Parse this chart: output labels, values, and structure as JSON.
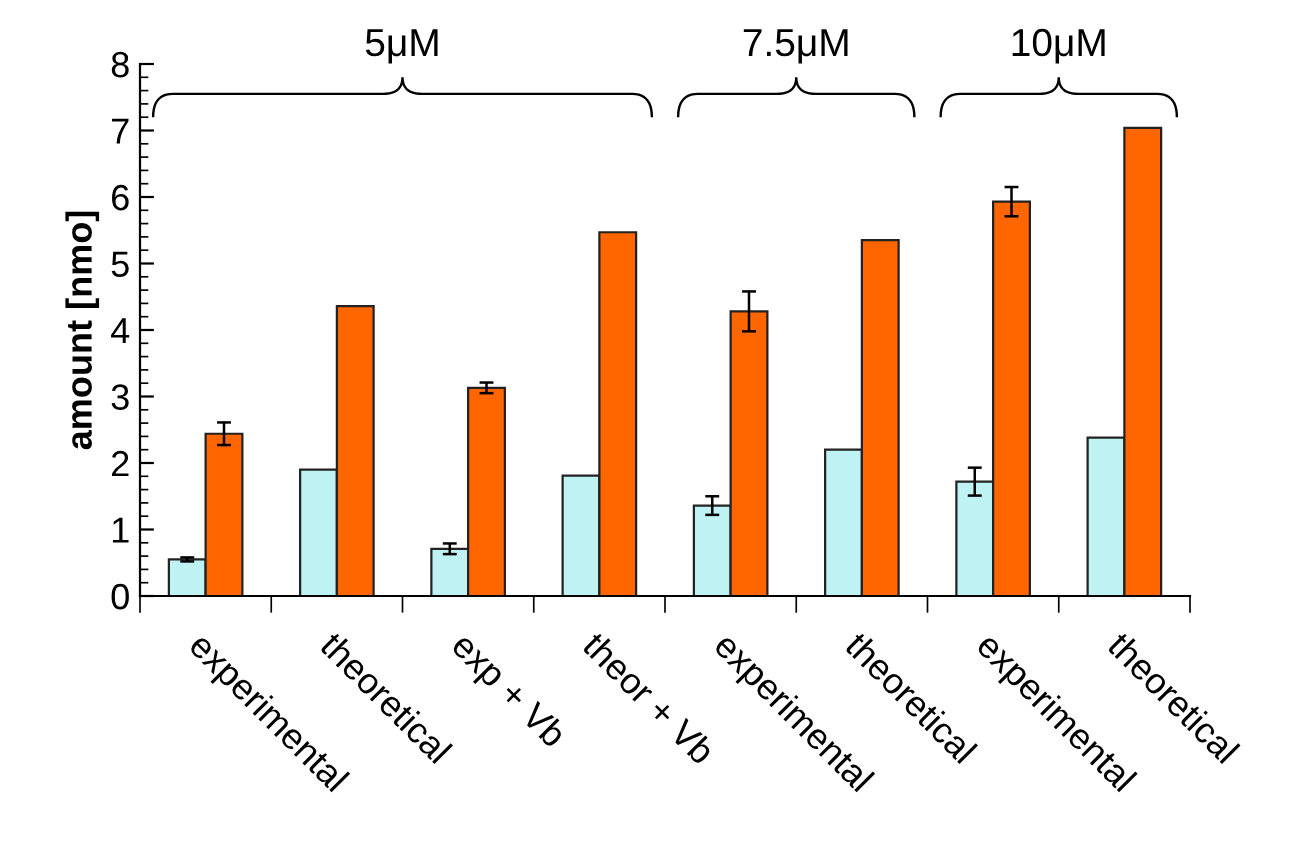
{
  "chart_data": {
    "type": "bar",
    "ylabel": "amount [nmo]",
    "categories": [
      "experimental",
      "theoretical",
      "exp + Vb",
      "theor + Vb",
      "experimental",
      "theoretical",
      "experimental",
      "theoretical"
    ],
    "series": [
      {
        "color": "#bff3f3",
        "values": [
          0.55,
          1.9,
          0.71,
          1.81,
          1.36,
          2.2,
          1.72,
          2.38
        ],
        "errors": [
          0.03,
          null,
          0.08,
          null,
          0.14,
          null,
          0.21,
          null
        ]
      },
      {
        "color": "#ff6600",
        "values": [
          2.44,
          4.36,
          3.13,
          5.47,
          4.28,
          5.35,
          5.93,
          7.04
        ],
        "errors": [
          0.17,
          null,
          0.08,
          null,
          0.3,
          null,
          0.22,
          null
        ]
      }
    ],
    "ylim": [
      0,
      8
    ],
    "yticks": [
      0,
      1,
      2,
      3,
      4,
      5,
      6,
      7,
      8
    ],
    "grid": false,
    "annotations": [
      "5μM",
      "7.5μM",
      "10μM"
    ]
  }
}
